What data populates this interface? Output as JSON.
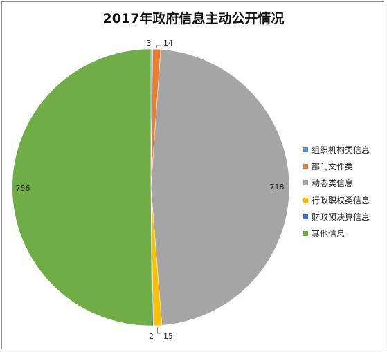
{
  "chart_data": {
    "type": "pie",
    "title": "2017年政府信息主动公开情况",
    "categories": [
      "组织机构类信息",
      "部门文件类",
      "动态类信息",
      "行政职权类信息",
      "财政预决算信息",
      "其他信息"
    ],
    "values": [
      3,
      14,
      718,
      15,
      2,
      756
    ],
    "colors": [
      "#5b9bd5",
      "#ed7d31",
      "#a5a5a5",
      "#ffc000",
      "#4472c4",
      "#70ad47"
    ],
    "legend": "right",
    "data_labels": [
      "3",
      "14",
      "718",
      "15",
      "2",
      "756"
    ]
  }
}
